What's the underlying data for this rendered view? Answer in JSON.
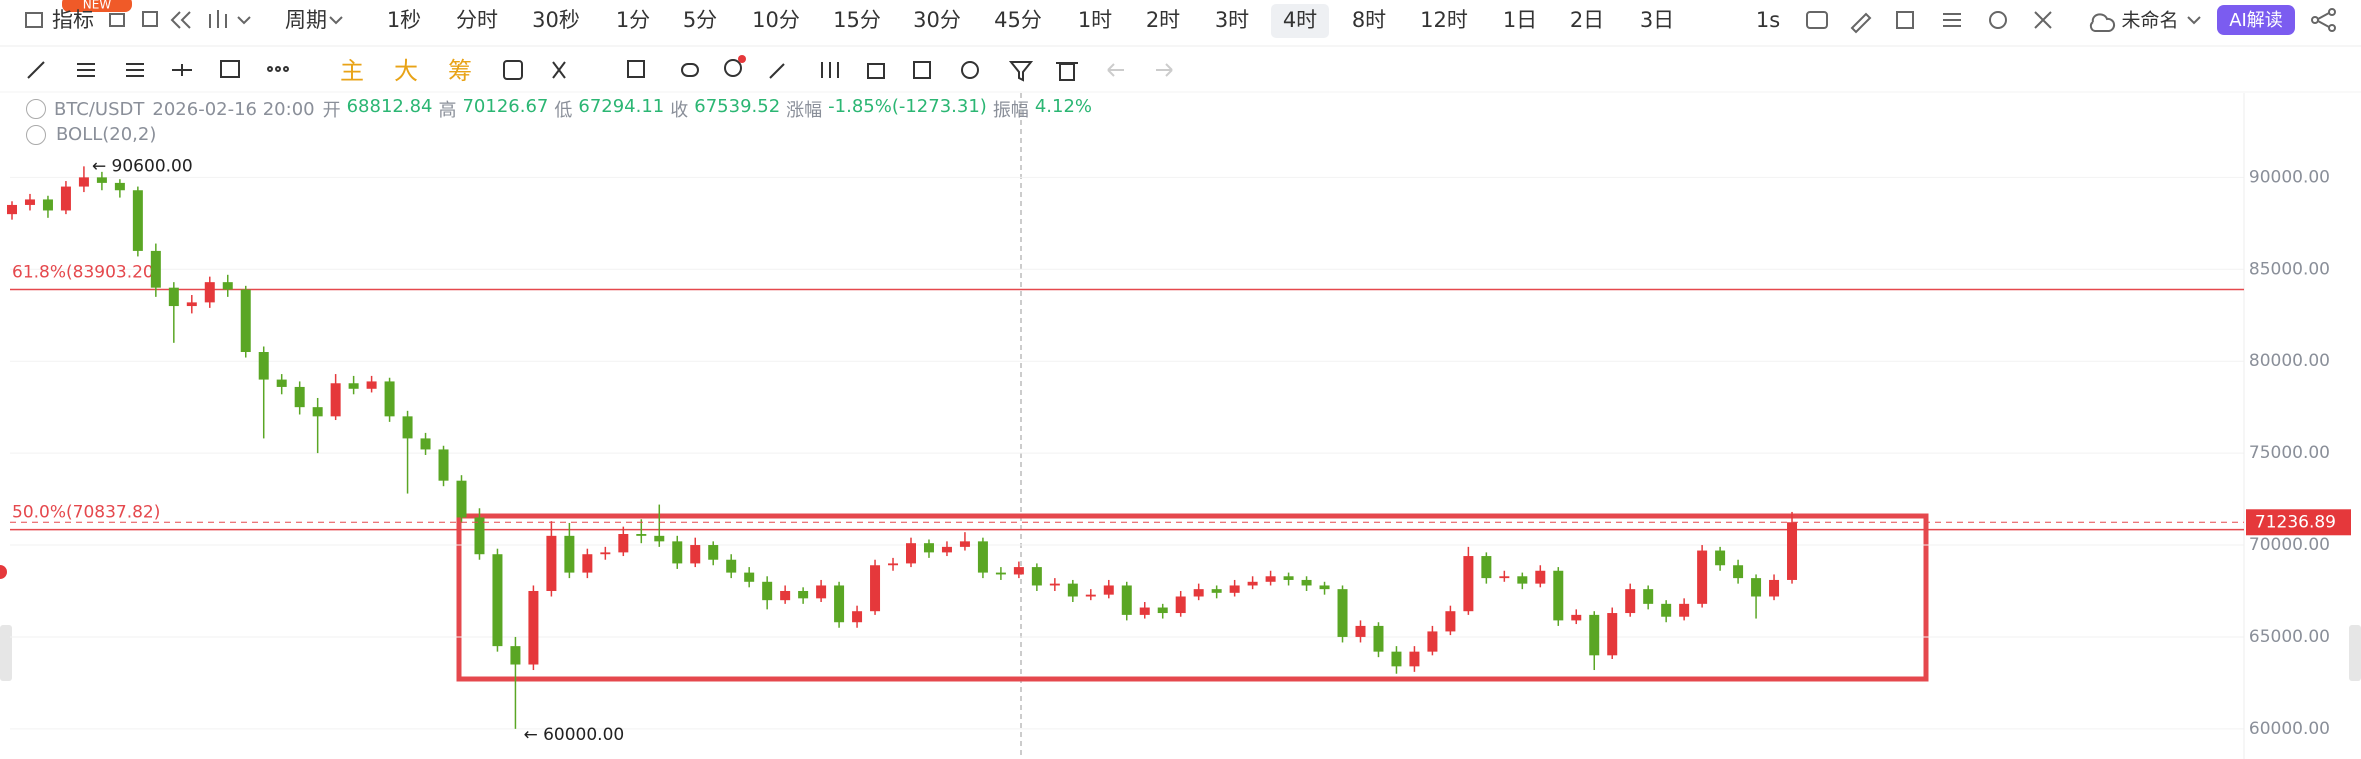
{
  "toolbar": {
    "indicator": "指标",
    "badge": "NEW",
    "period_menu": "周期",
    "periods": [
      "1秒",
      "分时",
      "30秒",
      "1分",
      "5分",
      "10分",
      "15分",
      "30分",
      "45分",
      "1时",
      "2时",
      "3时",
      "4时",
      "8时",
      "12时",
      "1日",
      "2日",
      "3日"
    ],
    "speed": "1s",
    "layout_name": "未命名",
    "ai_button": "AI解读"
  },
  "drawing_tools": [
    "主",
    "大",
    "筹"
  ],
  "info": {
    "pair": "BTC/USDT",
    "time": "2026-02-16 20:00",
    "fields": [
      {
        "label": "开",
        "value": "68812.84"
      },
      {
        "label": "高",
        "value": "70126.67"
      },
      {
        "label": "低",
        "value": "67294.11"
      },
      {
        "label": "收",
        "value": "67539.52"
      },
      {
        "label": "涨幅",
        "value": "-1.85%(-1273.31)"
      },
      {
        "label": "振幅",
        "value": "4.12%"
      }
    ],
    "indicator": "BOLL(20,2)"
  },
  "chart_data": {
    "type": "candlestick",
    "up_color": "#e5383b",
    "down_color": "#5aa624",
    "ylim": [
      58360,
      94590
    ],
    "yticks": [
      {
        "value": 90000,
        "label": "90000.00"
      },
      {
        "value": 85000,
        "label": "85000.00"
      },
      {
        "value": 80000,
        "label": "80000.00"
      },
      {
        "value": 75000,
        "label": "75000.00"
      },
      {
        "value": 70000,
        "label": "70000.00"
      },
      {
        "value": 65000,
        "label": "65000.00"
      },
      {
        "value": 60000,
        "label": "60000.00"
      }
    ],
    "grid": true,
    "fib_levels": [
      {
        "value": 83903.2,
        "label": "61.8%(83903.20)"
      },
      {
        "value": 70837.82,
        "label": "50.0%(70837.82)"
      }
    ],
    "high_marker": {
      "value": 90600,
      "label": "← 90600.00"
    },
    "low_marker": {
      "value": 60000,
      "label": "← 60000.00"
    },
    "last_price": 71236.89,
    "ohlc": [
      [
        88000,
        88700,
        87700,
        88500
      ],
      [
        88500,
        89100,
        88200,
        88800
      ],
      [
        88800,
        89000,
        87800,
        88200
      ],
      [
        88200,
        89800,
        88000,
        89500
      ],
      [
        89500,
        90600,
        89200,
        90000
      ],
      [
        90000,
        90300,
        89300,
        89700
      ],
      [
        89700,
        89900,
        88900,
        89300
      ],
      [
        89300,
        89500,
        85700,
        86000
      ],
      [
        86000,
        86400,
        83500,
        84000
      ],
      [
        84000,
        84300,
        81000,
        83000
      ],
      [
        83000,
        83600,
        82600,
        83200
      ],
      [
        83200,
        84600,
        82900,
        84300
      ],
      [
        84300,
        84700,
        83500,
        83900
      ],
      [
        83900,
        84100,
        80200,
        80500
      ],
      [
        80500,
        80800,
        75800,
        79000
      ],
      [
        79000,
        79300,
        78200,
        78600
      ],
      [
        78600,
        78900,
        77100,
        77500
      ],
      [
        77500,
        78000,
        75000,
        77000
      ],
      [
        77000,
        79300,
        76800,
        78800
      ],
      [
        78800,
        79200,
        78200,
        78500
      ],
      [
        78500,
        79200,
        78300,
        78900
      ],
      [
        78900,
        79100,
        76700,
        77000
      ],
      [
        77000,
        77300,
        72800,
        75800
      ],
      [
        75800,
        76100,
        74900,
        75200
      ],
      [
        75200,
        75400,
        73200,
        73500
      ],
      [
        73500,
        73800,
        71200,
        71500
      ],
      [
        71500,
        72000,
        69200,
        69500
      ],
      [
        69500,
        69800,
        64200,
        64500
      ],
      [
        64500,
        65000,
        60000,
        63500
      ],
      [
        63500,
        67800,
        63200,
        67500
      ],
      [
        67500,
        71300,
        67200,
        70500
      ],
      [
        70500,
        71200,
        68200,
        68500
      ],
      [
        68500,
        69800,
        68200,
        69500
      ],
      [
        69500,
        69900,
        69200,
        69600
      ],
      [
        69600,
        71000,
        69400,
        70600
      ],
      [
        70600,
        71400,
        70100,
        70500
      ],
      [
        70500,
        72200,
        69900,
        70200
      ],
      [
        70200,
        70500,
        68700,
        69000
      ],
      [
        69000,
        70400,
        68800,
        70000
      ],
      [
        70000,
        70200,
        68900,
        69200
      ],
      [
        69200,
        69500,
        68200,
        68500
      ],
      [
        68500,
        68800,
        67700,
        68000
      ],
      [
        68000,
        68300,
        66500,
        67000
      ],
      [
        67000,
        67800,
        66800,
        67500
      ],
      [
        67500,
        67700,
        66800,
        67100
      ],
      [
        67100,
        68100,
        66900,
        67800
      ],
      [
        67800,
        68000,
        65500,
        65800
      ],
      [
        65800,
        66700,
        65500,
        66400
      ],
      [
        66400,
        69200,
        66200,
        68900
      ],
      [
        68900,
        69300,
        68600,
        69000
      ],
      [
        69000,
        70400,
        68800,
        70100
      ],
      [
        70100,
        70300,
        69300,
        69600
      ],
      [
        69600,
        70200,
        69400,
        69900
      ],
      [
        69900,
        70700,
        69700,
        70200
      ],
      [
        70200,
        70400,
        68200,
        68500
      ],
      [
        68500,
        68800,
        68100,
        68400
      ],
      [
        68400,
        69100,
        68200,
        68800
      ],
      [
        68800,
        69000,
        67500,
        67800
      ],
      [
        67800,
        68200,
        67500,
        67900
      ],
      [
        67900,
        68100,
        66900,
        67200
      ],
      [
        67200,
        67600,
        67000,
        67300
      ],
      [
        67300,
        68100,
        67100,
        67800
      ],
      [
        67800,
        68000,
        65900,
        66200
      ],
      [
        66200,
        66900,
        66000,
        66600
      ],
      [
        66600,
        66800,
        66000,
        66300
      ],
      [
        66300,
        67500,
        66100,
        67200
      ],
      [
        67200,
        67900,
        67000,
        67600
      ],
      [
        67600,
        67800,
        67100,
        67400
      ],
      [
        67400,
        68100,
        67200,
        67800
      ],
      [
        67800,
        68300,
        67600,
        68000
      ],
      [
        68000,
        68600,
        67800,
        68300
      ],
      [
        68300,
        68500,
        67800,
        68100
      ],
      [
        68100,
        68300,
        67500,
        67800
      ],
      [
        67800,
        68000,
        67300,
        67600
      ],
      [
        67600,
        67800,
        64700,
        65000
      ],
      [
        65000,
        65900,
        64700,
        65600
      ],
      [
        65600,
        65800,
        63900,
        64200
      ],
      [
        64200,
        64500,
        63000,
        63400
      ],
      [
        63400,
        64500,
        63100,
        64200
      ],
      [
        64200,
        65600,
        64000,
        65300
      ],
      [
        65300,
        66700,
        65100,
        66400
      ],
      [
        66400,
        69900,
        66200,
        69400
      ],
      [
        69400,
        69600,
        67900,
        68200
      ],
      [
        68200,
        68600,
        68000,
        68300
      ],
      [
        68300,
        68500,
        67600,
        67900
      ],
      [
        67900,
        68900,
        67700,
        68600
      ],
      [
        68600,
        68800,
        65600,
        65900
      ],
      [
        65900,
        66500,
        65700,
        66200
      ],
      [
        66200,
        66400,
        63200,
        64000
      ],
      [
        64000,
        66600,
        63800,
        66300
      ],
      [
        66300,
        67900,
        66100,
        67600
      ],
      [
        67600,
        67800,
        66500,
        66800
      ],
      [
        66800,
        67000,
        65800,
        66100
      ],
      [
        66100,
        67100,
        65900,
        66800
      ],
      [
        66800,
        70000,
        66600,
        69700
      ],
      [
        69700,
        69900,
        68600,
        68900
      ],
      [
        68900,
        69200,
        67900,
        68200
      ],
      [
        68200,
        68400,
        66000,
        67200
      ],
      [
        67200,
        68400,
        67000,
        68100
      ],
      [
        68100,
        71800,
        67900,
        71236.89
      ]
    ]
  }
}
